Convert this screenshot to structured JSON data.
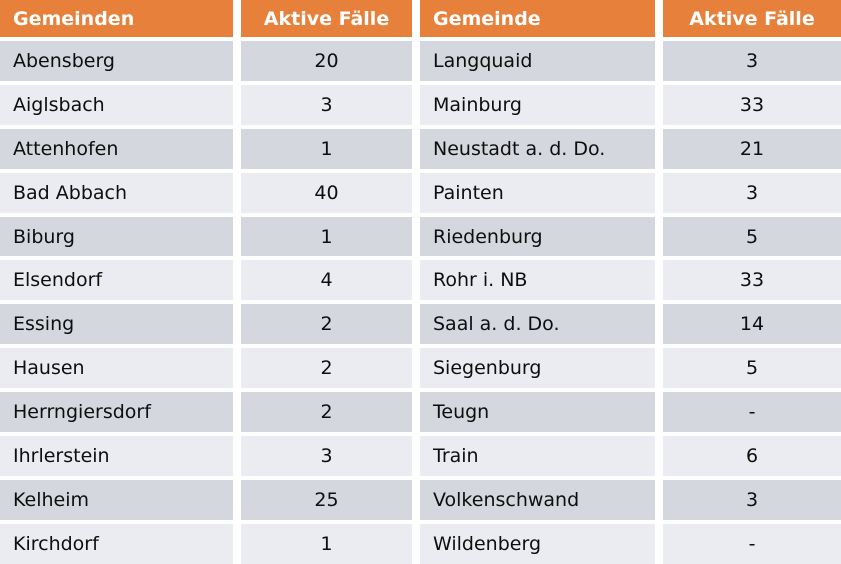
{
  "chart_data": {
    "type": "table",
    "columns": [
      "Gemeinden",
      "Aktive Fälle",
      "Gemeinde",
      "Aktive Fälle"
    ],
    "rows": [
      [
        "Abensberg",
        "20",
        "Langquaid",
        "3"
      ],
      [
        "Aiglsbach",
        "3",
        "Mainburg",
        "33"
      ],
      [
        "Attenhofen",
        "1",
        "Neustadt a. d. Do.",
        "21"
      ],
      [
        "Bad Abbach",
        "40",
        "Painten",
        "3"
      ],
      [
        "Biburg",
        "1",
        "Riedenburg",
        "5"
      ],
      [
        "Elsendorf",
        "4",
        "Rohr i. NB",
        "33"
      ],
      [
        "Essing",
        "2",
        "Saal a. d. Do.",
        "14"
      ],
      [
        "Hausen",
        "2",
        "Siegenburg",
        "5"
      ],
      [
        "Herrngiersdorf",
        "2",
        "Teugn",
        "-"
      ],
      [
        "Ihrlerstein",
        "3",
        "Train",
        "6"
      ],
      [
        "Kelheim",
        "25",
        "Volkenschwand",
        "3"
      ],
      [
        "Kirchdorf",
        "1",
        "Wildenberg",
        "-"
      ]
    ],
    "layout": {
      "banding": "alternating rows, odd rows darker",
      "value_alignment": "center",
      "name_alignment": "left"
    }
  },
  "colors": {
    "header_bg": "#E6803B",
    "header_text": "#FFFFFF",
    "row_dark": "#D5D7DE",
    "row_light": "#EBECF1",
    "cell_text": "#0E0E0E",
    "gap": "#FFFFFF"
  }
}
